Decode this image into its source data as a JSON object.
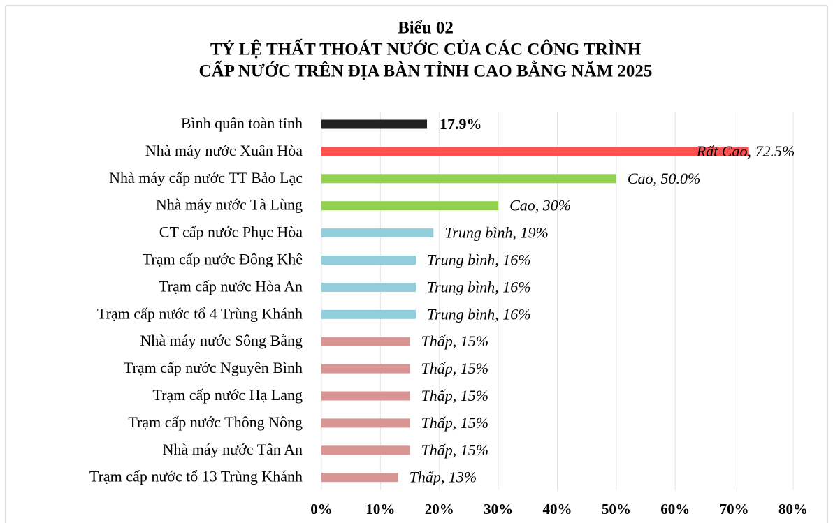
{
  "chart_data": {
    "type": "bar",
    "orientation": "horizontal",
    "title": [
      "Biểu 02",
      "TỶ LỆ THẤT THOÁT NƯỚC CỦA CÁC CÔNG TRÌNH",
      "CẤP NƯỚC TRÊN ĐỊA BÀN TỈNH CAO BẰNG NĂM 2025"
    ],
    "categories": [
      "Bình quân toàn tỉnh",
      "Nhà máy nước Xuân Hòa",
      "Nhà máy cấp nước TT Bảo Lạc",
      "Nhà máy nước  Tà Lùng",
      "CT cấp nước  Phục Hòa",
      "Trạm cấp nước Đông Khê",
      "Trạm cấp nước Hòa An",
      "Trạm cấp nước tổ 4 Trùng Khánh",
      "Nhà máy nước Sông Bằng",
      "Trạm cấp nước Nguyên Bình",
      "Trạm cấp nước Hạ Lang",
      "Trạm cấp nước Thông Nông",
      "Nhà máy nước Tân An",
      "Trạm cấp nước tổ 13 Trùng Khánh"
    ],
    "values": [
      17.9,
      72.5,
      50.0,
      30,
      19,
      16,
      16,
      16,
      15,
      15,
      15,
      15,
      15,
      13
    ],
    "value_labels": [
      "17.9%",
      "Rất Cao, 72.5%",
      "Cao, 50.0%",
      "Cao, 30%",
      "Trung bình, 19%",
      "Trung bình, 16%",
      "Trung bình, 16%",
      "Trung bình, 16%",
      "Thấp, 15%",
      "Thấp, 15%",
      "Thấp, 15%",
      "Thấp, 15%",
      "Thấp, 15%",
      "Thấp, 13%"
    ],
    "colors": [
      "#222222",
      "#ff5050",
      "#92d050",
      "#92d050",
      "#92cddc",
      "#92cddc",
      "#92cddc",
      "#92cddc",
      "#d99594",
      "#d99594",
      "#d99594",
      "#d99594",
      "#d99594",
      "#d99594"
    ],
    "xlim": [
      0,
      80
    ],
    "xticks": [
      {
        "value": 0,
        "label": "0%"
      },
      {
        "value": 10,
        "label": "10%"
      },
      {
        "value": 20,
        "label": "20%"
      },
      {
        "value": 30,
        "label": "30%"
      },
      {
        "value": 40,
        "label": "40%"
      },
      {
        "value": 50,
        "label": "50%"
      },
      {
        "value": 60,
        "label": "60%"
      },
      {
        "value": 70,
        "label": "70%"
      },
      {
        "value": 80,
        "label": "80%"
      }
    ],
    "grid": true
  }
}
